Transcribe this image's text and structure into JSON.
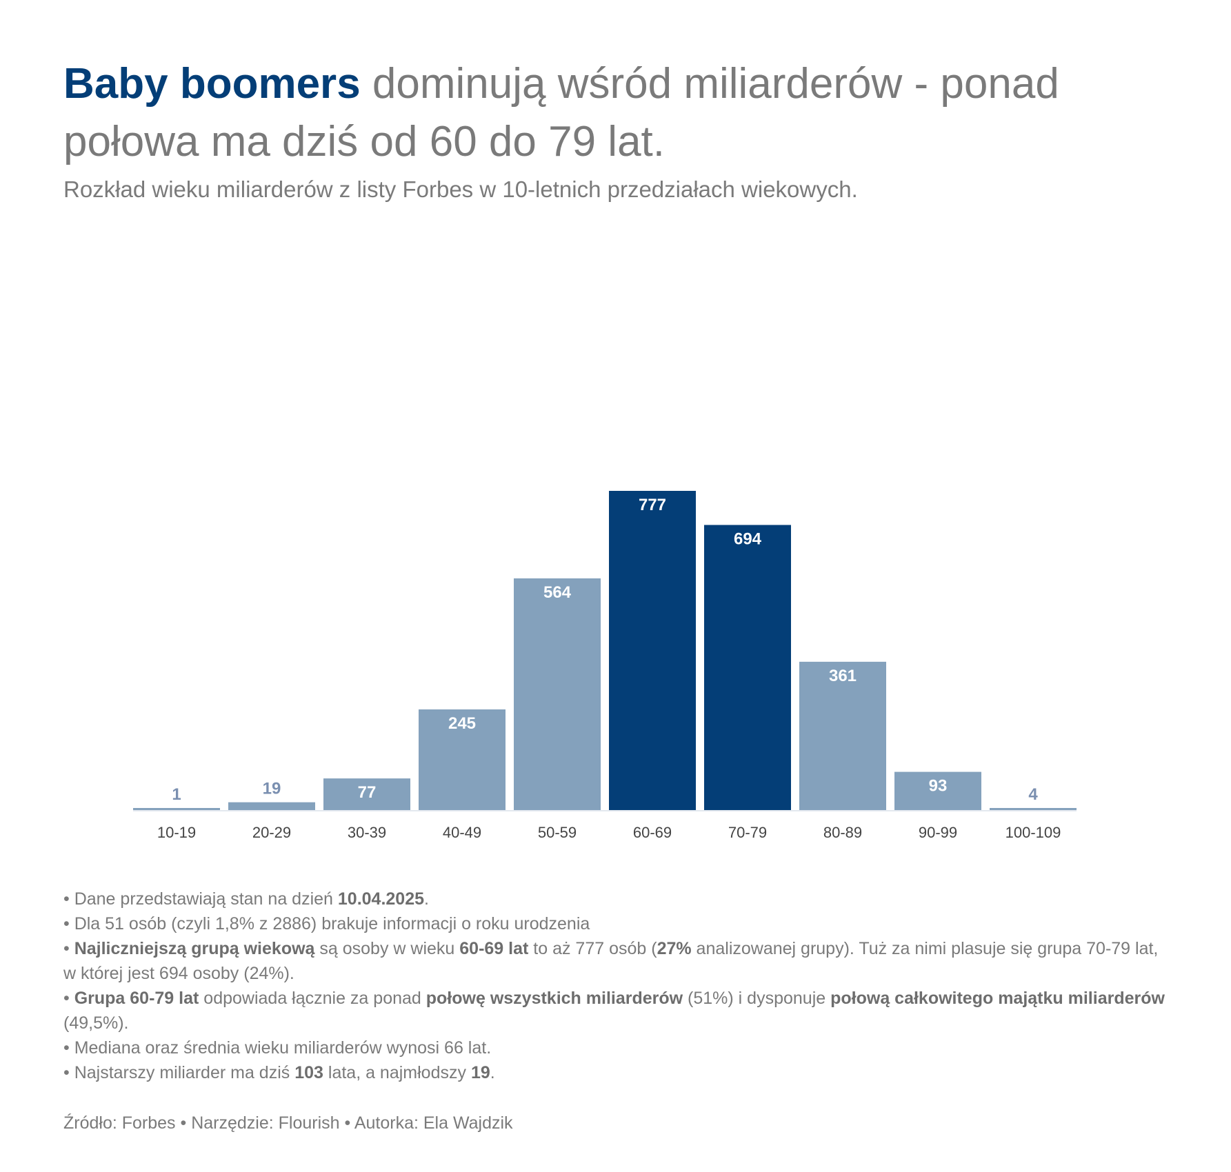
{
  "header": {
    "title_highlight": "Baby boomers",
    "title_rest": " dominują wśród miliarderów - ponad połowa ma dziś od 60 do 79 lat.",
    "subtitle": "Rozkład wieku miliarderów z listy Forbes w 10-letnich przedziałach wiekowych."
  },
  "chart_data": {
    "type": "bar",
    "categories": [
      "10-19",
      "20-29",
      "30-39",
      "40-49",
      "50-59",
      "60-69",
      "70-79",
      "80-89",
      "90-99",
      "100-109"
    ],
    "values": [
      1,
      19,
      77,
      245,
      564,
      777,
      694,
      361,
      93,
      4
    ],
    "highlighted": [
      false,
      false,
      false,
      false,
      false,
      true,
      true,
      false,
      false,
      false
    ],
    "title": "",
    "xlabel": "",
    "ylabel": "",
    "ylim": [
      0,
      777
    ],
    "grid": false,
    "legend": "none",
    "colors": {
      "default": "#84a1bc",
      "highlight": "#043e77",
      "label_inside": "#ffffff",
      "label_outside": "#7a8fb0"
    }
  },
  "notes": {
    "n1": {
      "a": "• Dane przedstawiają stan na dzień ",
      "b": "10.04.2025",
      "c": "."
    },
    "n2": {
      "a": "• Dla 51 osób (czyli 1,8% z 2886) brakuje informacji o roku urodzenia"
    },
    "n3": {
      "a": "• ",
      "b": "Najliczniejszą grupą wiekową",
      "c": " są osoby w wieku ",
      "d": "60-69 lat",
      "e": " to aż 777 osób (",
      "f": "27%",
      "g": " analizowanej grupy). Tuż za nimi plasuje się grupa 70-79 lat, w której jest 694 osoby (24%)."
    },
    "n4": {
      "a": "• ",
      "b": "Grupa 60-79 lat",
      "c": " odpowiada łącznie za ponad ",
      "d": "połowę wszystkich miliarderów",
      "e": " (51%) i dysponuje ",
      "f": "połową całkowitego majątku miliarderów",
      "g": " (49,5%)."
    },
    "n5": {
      "a": "• Mediana oraz średnia wieku miliarderów wynosi 66 lat."
    },
    "n6": {
      "a": "• Najstarszy miliarder ma dziś ",
      "b": "103",
      "c": " lata, a najmłodszy ",
      "d": "19",
      "e": "."
    }
  },
  "source": "Źródło: Forbes • Narzędzie: Flourish • Autorka: Ela Wajdzik"
}
